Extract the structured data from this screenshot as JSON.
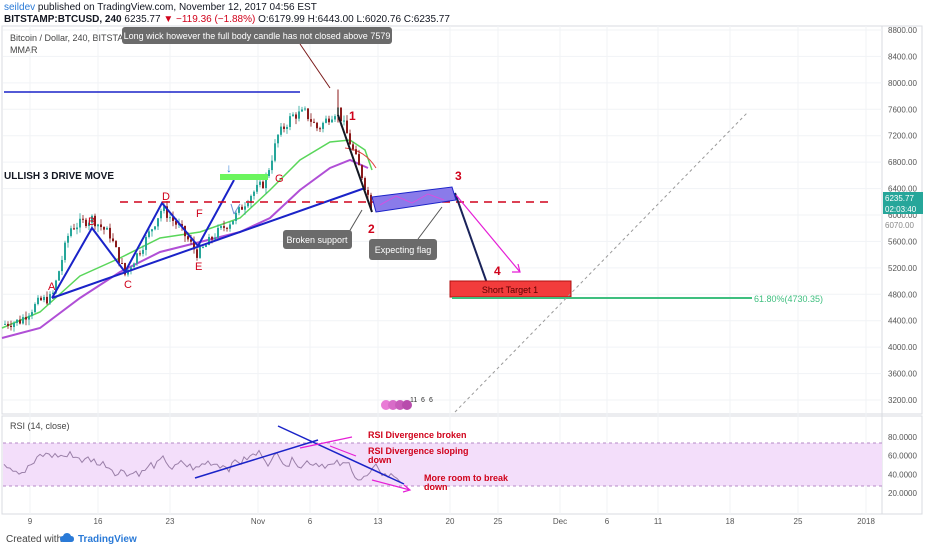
{
  "header": {
    "author": "seildev",
    "published": "published on TradingView.com, November 12, 2017 04:56 EST",
    "symbol": "BITSTAMP:BTCUSD, 240",
    "last": "6235.77",
    "change": "▼ −119.36 (−1.88%)",
    "ohlc": "O:6179.99 H:6443.00 L:6020.76 C:6235.77"
  },
  "legend": {
    "line1": "Bitcoin / Dollar, 240, BITSTAMP",
    "line2": "MMAR"
  },
  "rsi_label": "RSI (14, close)",
  "footer": {
    "created_with": "Created with",
    "brand": "TradingView"
  },
  "colors": {
    "candle_up": "#26a69a",
    "candle_down": "#8b1a1a",
    "pattern": "#1a23c8",
    "annotation_red": "#d0021b",
    "flag_fill": "#7b68ee",
    "target_box": "#f23c3c",
    "fib_line": "#3fbf7f",
    "rsi_line": "#a08aa8",
    "rsi_band": "#f0d8f8",
    "arrow_magenta": "#e51fd6"
  },
  "chart_data": {
    "type": "line",
    "title": "Bitcoin / Dollar, 240, BITSTAMP",
    "price_axis": {
      "min": 3000,
      "max": 8800,
      "ticks": [
        8800,
        8400,
        8000,
        7600,
        7200,
        6800,
        6400,
        6000,
        5600,
        5200,
        4800,
        4400,
        4000,
        3600,
        3200
      ],
      "labels": [
        "8800.00",
        "8400.00",
        "8000.00",
        "7600.00",
        "7200.00",
        "6800.00",
        "6400.00",
        "6000.00",
        "5600.00",
        "5200.00",
        "4800.00",
        "4400.00",
        "4000.00",
        "3600.00",
        "3200.00"
      ],
      "last_price_label": "6235.77",
      "countdown_label": "02:03:40",
      "secondary_label": "6070.00"
    },
    "rsi_axis": {
      "min": 0,
      "max": 100,
      "ticks": [
        80,
        60,
        40,
        20
      ],
      "labels": [
        "80.0000",
        "60.0000",
        "40.0000",
        "20.0000"
      ],
      "band": [
        30,
        70
      ]
    },
    "time_axis": {
      "labels": [
        "9",
        "16",
        "23",
        "Nov",
        "6",
        "13",
        "20",
        "25",
        "Dec",
        "6",
        "11",
        "18",
        "25",
        "2018"
      ]
    },
    "pattern_points": [
      "A",
      "B",
      "C",
      "D",
      "E",
      "F",
      "G"
    ],
    "wave_numbers": [
      "1",
      "2",
      "3",
      "4"
    ],
    "annotations": {
      "top_note": "Long wick however the full body candle has not closed above 7579",
      "drive_title": "ULLISH 3 DRIVE MOVE",
      "broken_support": "Broken support",
      "expecting_flag": "Expecting flag",
      "short_target": "Short Target 1",
      "fib_label": "61.80%(4730.35)",
      "rsi_notes": [
        "RSI Divergence broken",
        "RSI Divergence sloping",
        "down",
        "More room to break",
        "down"
      ],
      "event_labels": [
        "11",
        "6",
        "6"
      ]
    }
  }
}
